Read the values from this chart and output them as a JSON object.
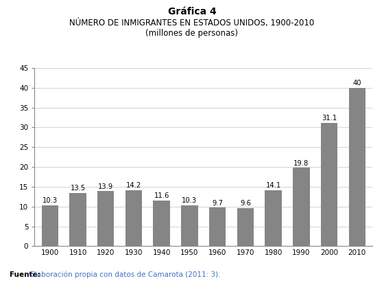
{
  "title_line1": "Gráfica 4",
  "title_line2": "NÚMERO DE INMIGRANTES EN ESTADOS UNIDOS, 1900-2010",
  "title_line3": "(millones de personas)",
  "years": [
    "1900",
    "1910",
    "1920",
    "1930",
    "1940",
    "1950",
    "1960",
    "1970",
    "1980",
    "1990",
    "2000",
    "2010"
  ],
  "values": [
    10.3,
    13.5,
    13.9,
    14.2,
    11.6,
    10.3,
    9.7,
    9.6,
    14.1,
    19.8,
    31.1,
    40
  ],
  "bar_color": "#858585",
  "ylim": [
    0,
    45
  ],
  "yticks": [
    0,
    5,
    10,
    15,
    20,
    25,
    30,
    35,
    40,
    45
  ],
  "footnote_bold": "Fuente:",
  "footnote_rest": " Elaboración propia con datos de Camarota (2011: 3).",
  "footnote_rest_color": "#4472C4",
  "background_color": "#ffffff",
  "label_fontsize": 7.2,
  "title1_fontsize": 10,
  "title2_fontsize": 8.5,
  "title3_fontsize": 8.5,
  "xtick_fontsize": 7.5,
  "ytick_fontsize": 7.5,
  "footnote_fontsize": 7.5
}
